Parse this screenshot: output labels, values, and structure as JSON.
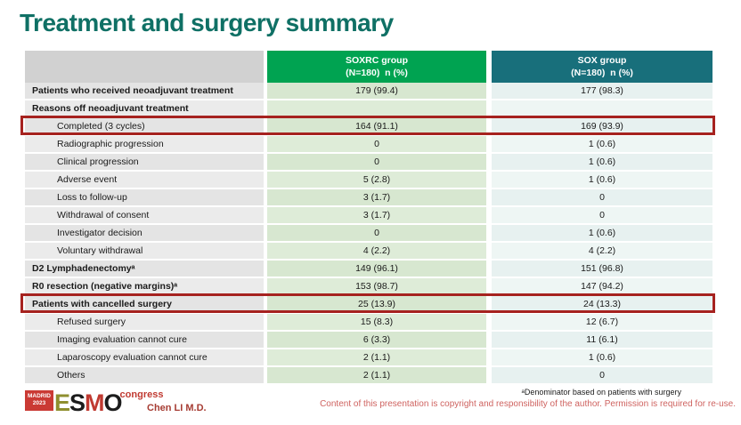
{
  "title": "Treatment and surgery summary",
  "colors": {
    "title_green": "#0f7065",
    "soxrc_header_green": "#00a351",
    "sox_header_teal": "#186f7b",
    "highlight_red": "#a6221f"
  },
  "table": {
    "columns": [
      {
        "line1": "SOXRC group",
        "line2": "(N=180)  n (%)"
      },
      {
        "line1": "SOX group",
        "line2": "(N=180)  n (%)"
      }
    ],
    "rows": [
      {
        "label": "Patients who received neoadjuvant treatment",
        "soxrc": "179 (99.4)",
        "sox": "177 (98.3)",
        "style": "bold",
        "highlight": false
      },
      {
        "label": "Reasons off neoadjuvant treatment",
        "soxrc": "",
        "sox": "",
        "style": "bold",
        "highlight": false
      },
      {
        "label": "Completed (3 cycles)",
        "soxrc": "164 (91.1)",
        "sox": "169 (93.9)",
        "style": "indent",
        "highlight": true
      },
      {
        "label": "Radiographic progression",
        "soxrc": "0",
        "sox": "1 (0.6)",
        "style": "indent",
        "highlight": false
      },
      {
        "label": "Clinical progression",
        "soxrc": "0",
        "sox": "1 (0.6)",
        "style": "indent",
        "highlight": false
      },
      {
        "label": "Adverse event",
        "soxrc": "5 (2.8)",
        "sox": "1 (0.6)",
        "style": "indent",
        "highlight": false
      },
      {
        "label": "Loss to follow-up",
        "soxrc": "3 (1.7)",
        "sox": "0",
        "style": "indent",
        "highlight": false
      },
      {
        "label": "Withdrawal of consent",
        "soxrc": "3 (1.7)",
        "sox": "0",
        "style": "indent",
        "highlight": false
      },
      {
        "label": "Investigator decision",
        "soxrc": "0",
        "sox": "1 (0.6)",
        "style": "indent",
        "highlight": false
      },
      {
        "label": "Voluntary withdrawal",
        "soxrc": "4 (2.2)",
        "sox": "4 (2.2)",
        "style": "indent",
        "highlight": false
      },
      {
        "label": "D2 Lymphadenectomyᵃ",
        "soxrc": "149 (96.1)",
        "sox": "151 (96.8)",
        "style": "bold",
        "highlight": false
      },
      {
        "label": "R0 resection (negative margins)ᵃ",
        "soxrc": "153 (98.7)",
        "sox": "147 (94.2)",
        "style": "bold",
        "highlight": false
      },
      {
        "label": "Patients with cancelled surgery",
        "soxrc": "25 (13.9)",
        "sox": "24 (13.3)",
        "style": "bold",
        "highlight": true
      },
      {
        "label": "Refused surgery",
        "soxrc": "15 (8.3)",
        "sox": "12 (6.7)",
        "style": "indent",
        "highlight": false
      },
      {
        "label": "Imaging evaluation cannot cure",
        "soxrc": "6 (3.3)",
        "sox": "11 (6.1)",
        "style": "indent",
        "highlight": false
      },
      {
        "label": "Laparoscopy evaluation cannot cure",
        "soxrc": "2 (1.1)",
        "sox": "1 (0.6)",
        "style": "indent",
        "highlight": false
      },
      {
        "label": "Others",
        "soxrc": "2 (1.1)",
        "sox": "0",
        "style": "indent",
        "highlight": false
      }
    ]
  },
  "footer": {
    "logo": {
      "badge_line1": "MADRID",
      "badge_line2": "2023",
      "letter_e": "E",
      "letter_s": "S",
      "letter_m": "M",
      "letter_o": "O",
      "suffix": "congress"
    },
    "presenter": "Chen LI M.D.",
    "footnote": "ᵃDenominator based on patients with surgery",
    "copyright": "Content of this presentation is copyright and responsibility of the author. Permission is required for re-use."
  }
}
